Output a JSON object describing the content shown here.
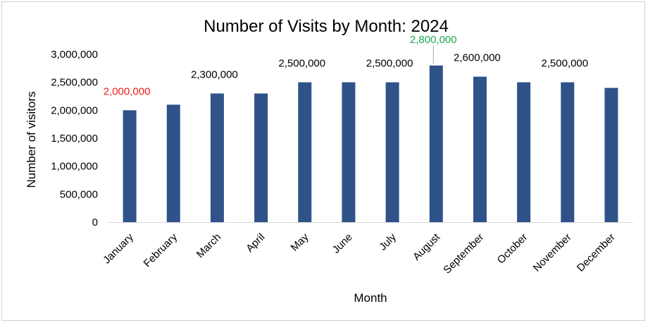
{
  "chart_data": {
    "type": "bar",
    "title": "Number of Visits by Month: 2024",
    "xlabel": "Month",
    "ylabel": "Number of visitors",
    "categories": [
      "January",
      "February",
      "March",
      "April",
      "May",
      "June",
      "July",
      "August",
      "September",
      "October",
      "November",
      "December"
    ],
    "values": [
      2000000,
      2100000,
      2300000,
      2300000,
      2500000,
      2500000,
      2500000,
      2800000,
      2600000,
      2500000,
      2500000,
      2400000
    ],
    "ylim": [
      0,
      3000000
    ],
    "yticks": [
      "0",
      "500,000",
      "1,000,000",
      "1,500,000",
      "2,000,000",
      "2,500,000",
      "3,000,000"
    ],
    "grid": false,
    "legend": "none",
    "bar_color": "#2f5389",
    "data_labels": [
      {
        "category": "January",
        "text": "2,000,000",
        "color": "#ee1c1c"
      },
      {
        "category": "March",
        "text": "2,300,000",
        "color": "#000000"
      },
      {
        "category": "May",
        "text": "2,500,000",
        "color": "#000000"
      },
      {
        "category": "July",
        "text": "2,500,000",
        "color": "#000000"
      },
      {
        "category": "August",
        "text": "2,800,000",
        "color": "#1ea84f"
      },
      {
        "category": "September",
        "text": "2,600,000",
        "color": "#000000"
      },
      {
        "category": "November",
        "text": "2,500,000",
        "color": "#000000"
      }
    ]
  }
}
